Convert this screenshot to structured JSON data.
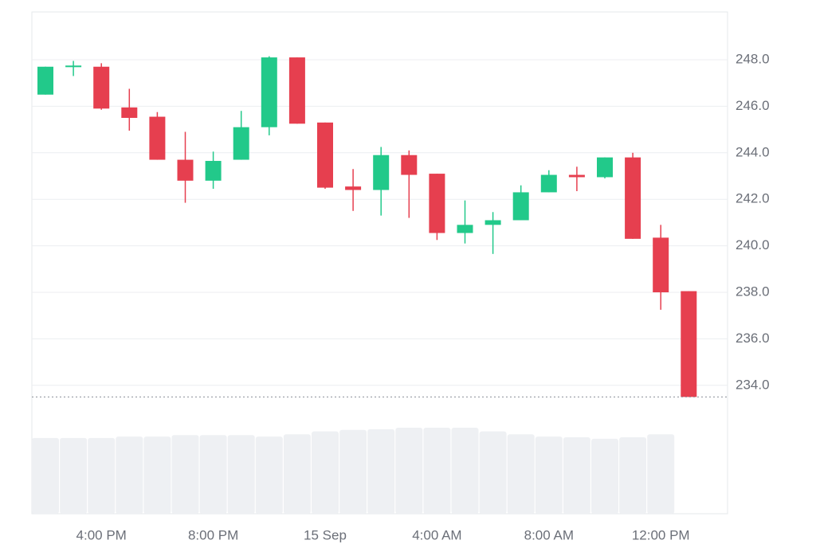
{
  "chart_data": {
    "type": "candlestick",
    "categories": [
      null,
      null,
      "4:00 PM",
      null,
      null,
      null,
      "8:00 PM",
      null,
      null,
      null,
      "15 Sep",
      null,
      null,
      null,
      "4:00 AM",
      null,
      null,
      null,
      "8:00 AM",
      null,
      null,
      null,
      "12:00 PM",
      null
    ],
    "open": [
      246.5,
      247.7,
      247.7,
      245.95,
      245.55,
      243.7,
      242.8,
      243.7,
      245.1,
      248.1,
      245.3,
      242.55,
      242.4,
      243.9,
      243.1,
      240.55,
      240.9,
      241.1,
      242.3,
      243.05,
      242.95,
      243.8,
      240.35,
      238.05
    ],
    "high": [
      247.7,
      247.95,
      247.85,
      246.75,
      245.75,
      244.9,
      244.05,
      245.8,
      248.15,
      248.1,
      245.3,
      243.3,
      244.25,
      244.1,
      243.1,
      241.95,
      241.45,
      242.6,
      243.25,
      243.4,
      243.8,
      244.0,
      240.9,
      238.05
    ],
    "low": [
      246.5,
      247.3,
      245.85,
      244.95,
      243.7,
      241.85,
      242.45,
      243.7,
      244.75,
      245.25,
      242.45,
      241.5,
      241.3,
      241.2,
      240.25,
      240.1,
      239.65,
      241.1,
      242.3,
      242.35,
      242.9,
      240.3,
      237.25,
      233.5
    ],
    "close": [
      247.7,
      247.75,
      245.9,
      245.5,
      243.7,
      242.8,
      243.65,
      245.1,
      248.1,
      245.25,
      242.5,
      242.4,
      243.9,
      243.05,
      240.55,
      240.9,
      241.1,
      242.3,
      243.05,
      242.95,
      243.8,
      240.3,
      238.0,
      233.5
    ],
    "volume": [
      103,
      103,
      103,
      105,
      105,
      107,
      107,
      107,
      105,
      108,
      112,
      114,
      115,
      117,
      117,
      117,
      112,
      108,
      105,
      104,
      102,
      104,
      108,
      null
    ],
    "up_color": "#22c98a",
    "down_color": "#e63f4f",
    "volume_color": "#eef0f3",
    "ylim": [
      233.5,
      250
    ],
    "yticks": [
      {
        "value": 234,
        "label": "234.0"
      },
      {
        "value": 236,
        "label": "236.0"
      },
      {
        "value": 238,
        "label": "238.0"
      },
      {
        "value": 240,
        "label": "240.0"
      },
      {
        "value": 242,
        "label": "242.0"
      },
      {
        "value": 244,
        "label": "244.0"
      },
      {
        "value": 246,
        "label": "246.0"
      },
      {
        "value": 248,
        "label": "248.0"
      }
    ],
    "grid": true
  }
}
